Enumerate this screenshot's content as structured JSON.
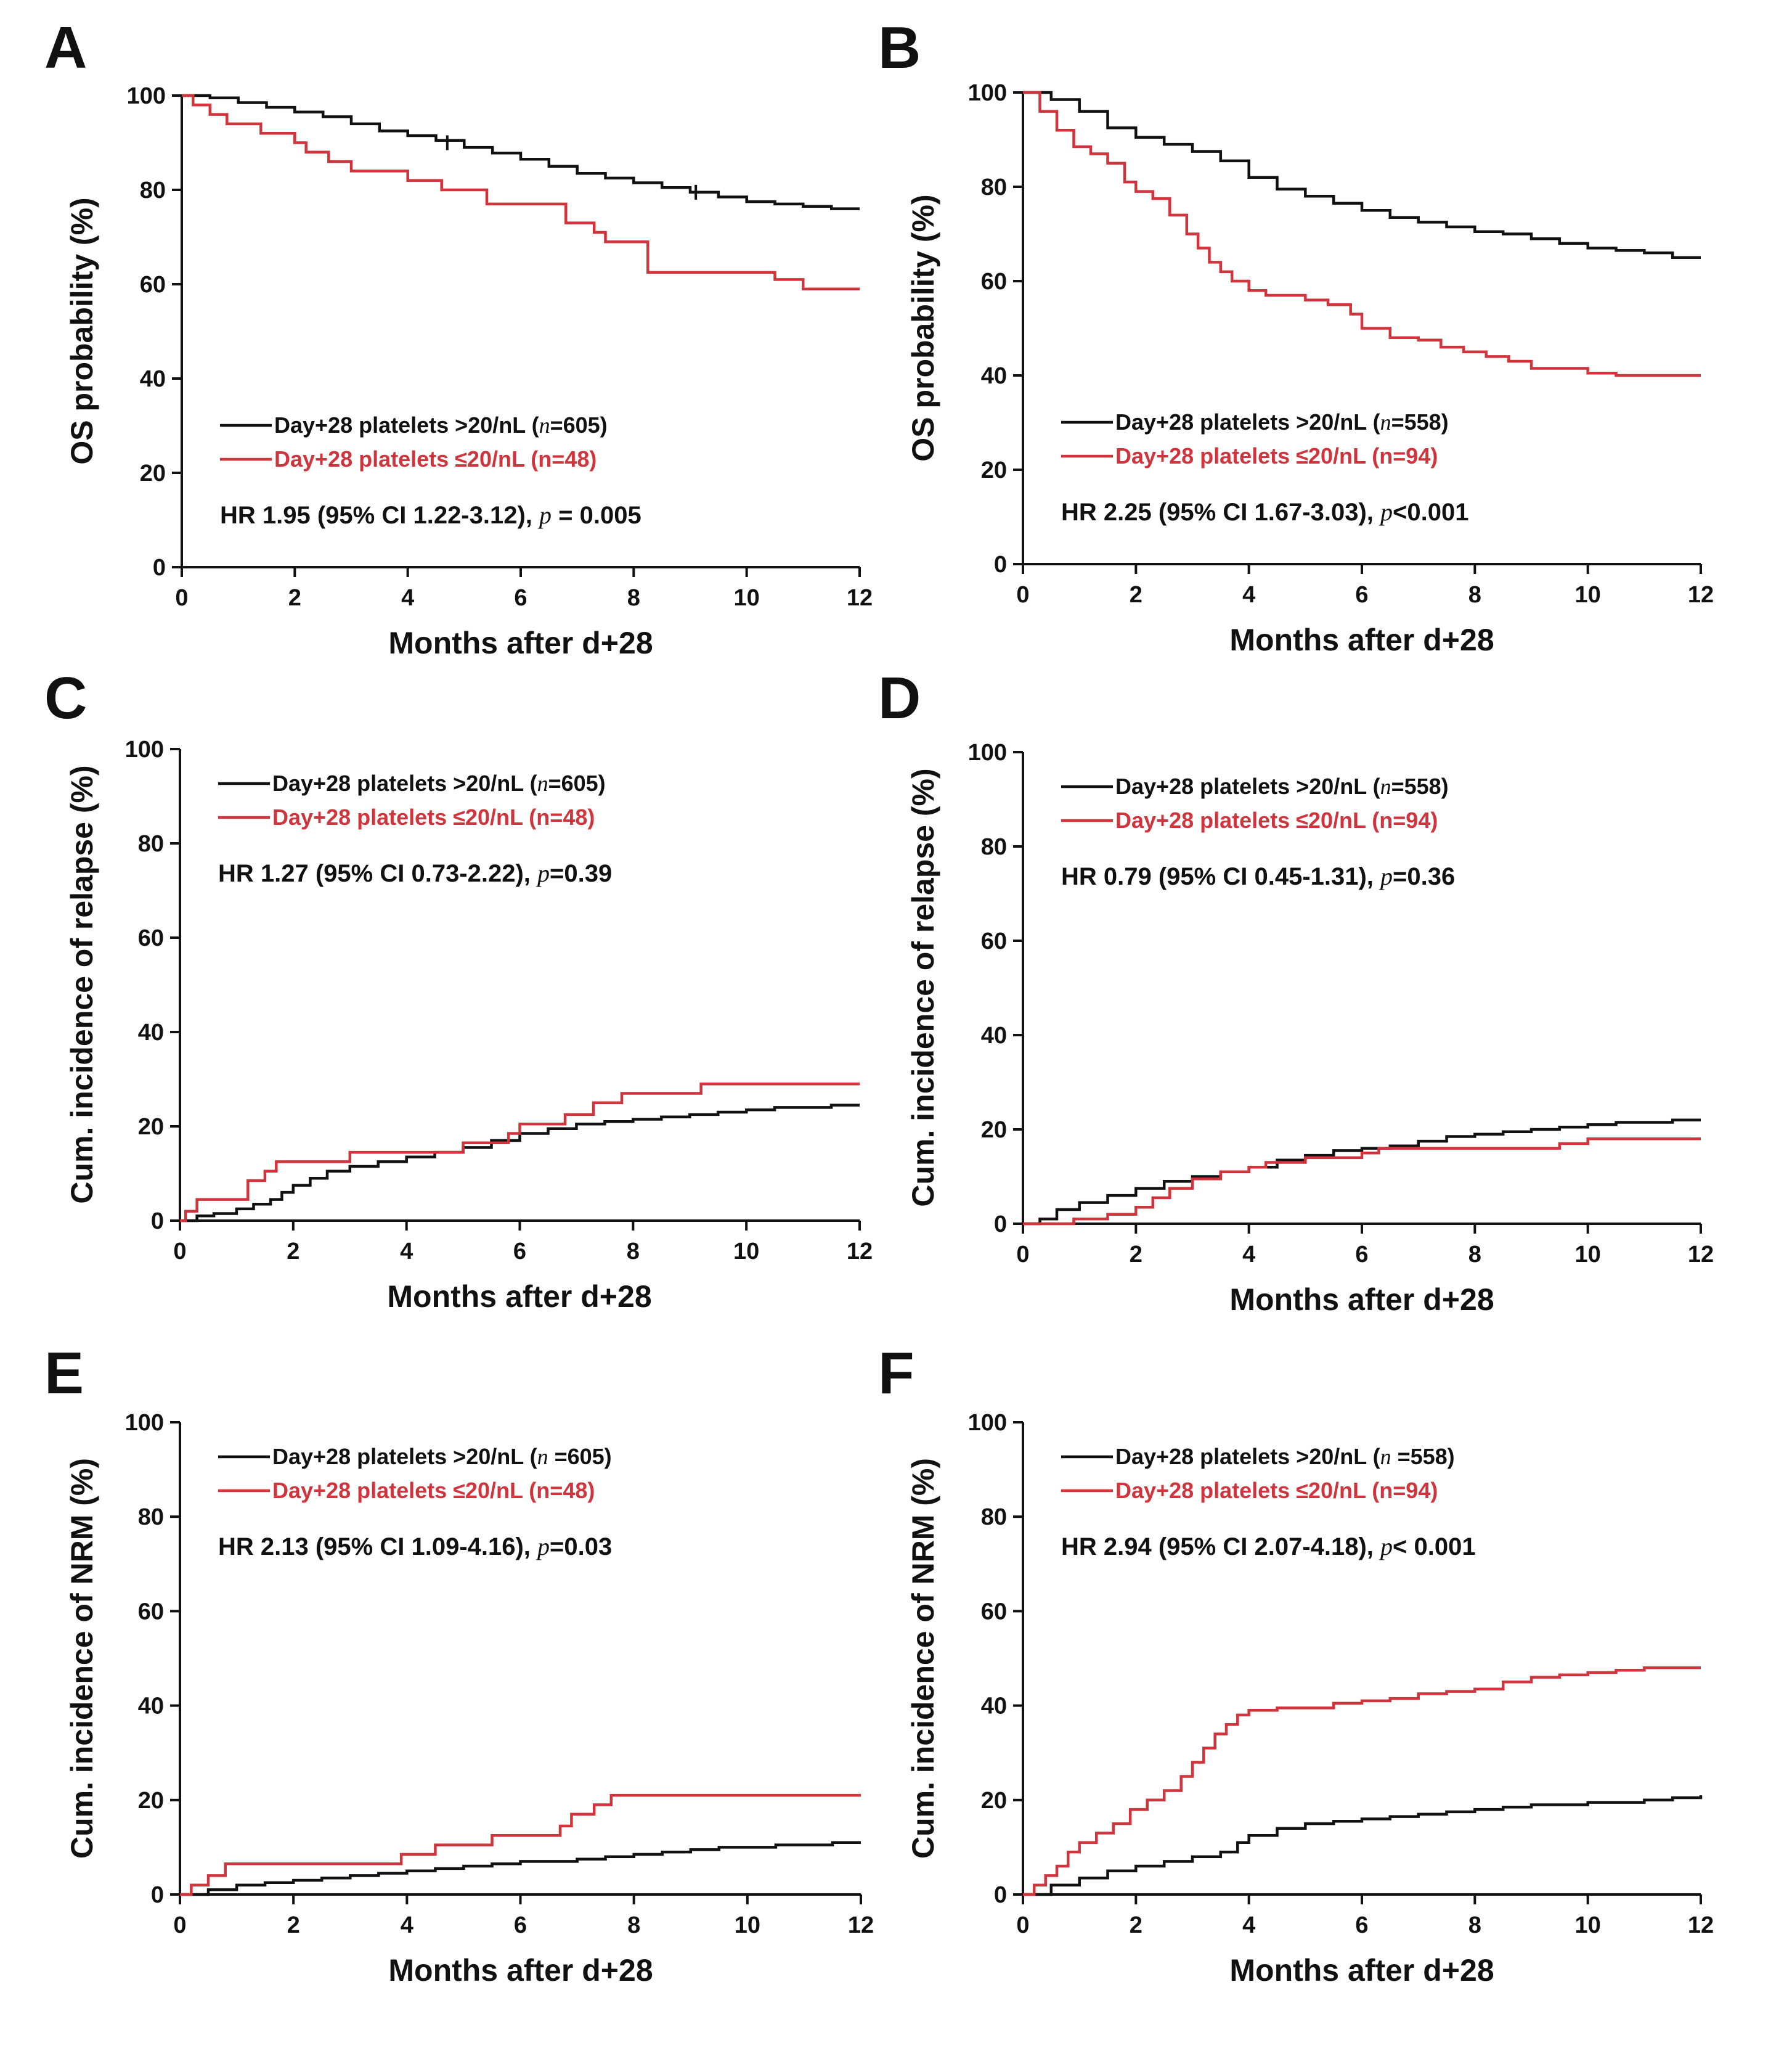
{
  "colors": {
    "series_high": "#111111",
    "series_low": "#d0343c",
    "axis": "#111111"
  },
  "chart_data": [
    {
      "panel": "A",
      "type": "line",
      "step": true,
      "ylabel": "OS probability (%)",
      "xlabel": "Months after d+28",
      "xlim": [
        0,
        12
      ],
      "ylim": [
        0,
        100
      ],
      "xticks": [
        0,
        2,
        4,
        6,
        8,
        10,
        12
      ],
      "yticks": [
        0,
        20,
        40,
        60,
        80,
        100
      ],
      "legend_position": "lower-left",
      "series": [
        {
          "name": "Day+28 platelets >20/nL",
          "n_prefix": "(",
          "n_symbol": "n",
          "n_suffix": "=605)",
          "color": "#111111",
          "x": [
            0,
            0.5,
            1,
            1.5,
            2,
            2.5,
            3,
            3.5,
            4,
            4.5,
            5,
            5.5,
            6,
            6.5,
            7,
            7.5,
            8,
            8.5,
            9,
            9.5,
            10,
            10.5,
            11,
            11.5,
            12
          ],
          "y": [
            100,
            99.5,
            98.5,
            97.5,
            96.5,
            95.5,
            94,
            92.5,
            91.5,
            90.5,
            89,
            87.8,
            86.5,
            85,
            83.5,
            82.5,
            81.5,
            80.5,
            79.5,
            78.5,
            77.5,
            77,
            76.5,
            76,
            76
          ]
        },
        {
          "name": "Day+28 platelets ≤20/nL",
          "n_prefix": "(",
          "n_symbol": "",
          "n_suffix": "n=48)",
          "color": "#d0343c",
          "x": [
            0,
            0.2,
            0.5,
            0.8,
            1.4,
            2,
            2.2,
            2.6,
            3,
            3.9,
            4,
            4.6,
            5,
            5.4,
            6,
            6.4,
            6.8,
            7,
            7.3,
            7.5,
            8,
            8.25,
            9,
            10,
            10.5,
            11,
            11.5,
            12
          ],
          "y": [
            100,
            98,
            96,
            94,
            92,
            90,
            88,
            86,
            84,
            84,
            82,
            80,
            80,
            77,
            77,
            77,
            73,
            73,
            71,
            69,
            69,
            62.5,
            62.5,
            62.5,
            61,
            59,
            59,
            59
          ]
        }
      ],
      "censor_marks": [
        {
          "x": 4.7,
          "y": 90
        },
        {
          "x": 9.1,
          "y": 79.5
        }
      ],
      "annotation": {
        "text": "HR 1.95 (95% CI 1.22-3.12), ",
        "p_symbol": "p",
        "p_text": " = 0.005"
      }
    },
    {
      "panel": "B",
      "type": "line",
      "step": true,
      "ylabel": "OS probability (%)",
      "xlabel": "Months after d+28",
      "xlim": [
        0,
        12
      ],
      "ylim": [
        0,
        100
      ],
      "xticks": [
        0,
        2,
        4,
        6,
        8,
        10,
        12
      ],
      "yticks": [
        0,
        20,
        40,
        60,
        80,
        100
      ],
      "legend_position": "lower-left",
      "series": [
        {
          "name": "Day+28 platelets >20/nL",
          "n_prefix": "(",
          "n_symbol": "n",
          "n_suffix": "=558)",
          "color": "#111111",
          "x": [
            0,
            0.5,
            1,
            1.5,
            2,
            2.5,
            3,
            3.5,
            4,
            4.5,
            5,
            5.5,
            6,
            6.5,
            7,
            7.5,
            8,
            8.5,
            9,
            9.5,
            10,
            10.5,
            11,
            11.5,
            12
          ],
          "y": [
            100,
            98.5,
            96,
            92.5,
            90.5,
            89,
            87.5,
            85.5,
            82,
            79.5,
            78,
            76.5,
            75,
            73.5,
            72.5,
            71.5,
            70.5,
            70,
            69,
            68,
            67,
            66.5,
            66,
            65,
            65
          ]
        },
        {
          "name": "Day+28 platelets ≤20/nL",
          "n_prefix": "(",
          "n_symbol": "",
          "n_suffix": "n=94)",
          "color": "#d0343c",
          "x": [
            0,
            0.3,
            0.6,
            0.9,
            1.2,
            1.5,
            1.8,
            2,
            2.3,
            2.6,
            2.9,
            3.1,
            3.3,
            3.5,
            3.7,
            4,
            4.3,
            4.7,
            5,
            5.4,
            5.8,
            6,
            6.5,
            7,
            7.4,
            7.8,
            8.2,
            8.6,
            9,
            9.5,
            10,
            10.5,
            11,
            11.5,
            12
          ],
          "y": [
            100,
            96,
            92,
            88.5,
            87,
            85,
            81,
            79,
            77.5,
            74,
            70,
            67,
            64,
            62,
            60,
            58,
            57,
            57,
            56,
            55,
            53,
            50,
            48,
            47.5,
            46,
            45,
            44,
            43,
            41.5,
            41.5,
            40.5,
            40,
            40,
            40,
            40
          ]
        }
      ],
      "censor_marks": [],
      "annotation": {
        "text": "HR 2.25 (95% CI 1.67-3.03), ",
        "p_symbol": "p",
        "p_text": "<0.001"
      }
    },
    {
      "panel": "C",
      "type": "line",
      "step": true,
      "ylabel": "Cum. incidence of relapse (%)",
      "xlabel": "Months after d+28",
      "xlim": [
        0,
        12
      ],
      "ylim": [
        0,
        100
      ],
      "xticks": [
        0,
        2,
        4,
        6,
        8,
        10,
        12
      ],
      "yticks": [
        0,
        20,
        40,
        60,
        80,
        100
      ],
      "legend_position": "upper-left",
      "series": [
        {
          "name": "Day+28 platelets >20/nL",
          "n_prefix": "(",
          "n_symbol": "n",
          "n_suffix": "=605)",
          "color": "#111111",
          "x": [
            0,
            0.3,
            0.6,
            1,
            1.3,
            1.6,
            1.8,
            2,
            2.3,
            2.6,
            3,
            3.5,
            4,
            4.5,
            5,
            5.5,
            6,
            6.5,
            7,
            7.5,
            8,
            8.5,
            9,
            9.5,
            10,
            10.5,
            11,
            11.5,
            12
          ],
          "y": [
            0,
            1,
            1.5,
            2.5,
            3.5,
            4.5,
            6,
            7.5,
            9,
            10.5,
            11.5,
            12.5,
            13.5,
            14.5,
            15.5,
            17,
            18.5,
            19.5,
            20.5,
            21,
            21.5,
            22,
            22.5,
            23,
            23.5,
            24,
            24,
            24.5,
            24.5
          ]
        },
        {
          "name": "Day+28 platelets ≤20/nL",
          "n_prefix": "(",
          "n_symbol": "",
          "n_suffix": "n=48)",
          "color": "#d0343c",
          "x": [
            0,
            0.1,
            0.3,
            0.9,
            1.2,
            1.5,
            1.7,
            2.7,
            3,
            4.6,
            5,
            5.8,
            6,
            6.4,
            6.8,
            7.3,
            7.8,
            8.2,
            8.6,
            9.2,
            10,
            12
          ],
          "y": [
            0,
            2,
            4.5,
            4.5,
            8.5,
            10.5,
            12.5,
            12.5,
            14.5,
            14.5,
            16.5,
            18.5,
            20.5,
            20.5,
            22.5,
            25,
            27,
            27,
            27,
            29,
            29,
            29
          ]
        }
      ],
      "censor_marks": [],
      "annotation": {
        "text": "HR 1.27 (95% CI 0.73-2.22), ",
        "p_symbol": "p",
        "p_text": "=0.39"
      }
    },
    {
      "panel": "D",
      "type": "line",
      "step": true,
      "ylabel": "Cum. incidence of relapse (%)",
      "xlabel": "Months after d+28",
      "xlim": [
        0,
        12
      ],
      "ylim": [
        0,
        100
      ],
      "xticks": [
        0,
        2,
        4,
        6,
        8,
        10,
        12
      ],
      "yticks": [
        0,
        20,
        40,
        60,
        80,
        100
      ],
      "legend_position": "upper-left",
      "series": [
        {
          "name": "Day+28 platelets >20/nL",
          "n_prefix": "(",
          "n_symbol": "n",
          "n_suffix": "=558)",
          "color": "#111111",
          "x": [
            0,
            0.3,
            0.6,
            1,
            1.5,
            2,
            2.5,
            3,
            3.5,
            4,
            4.5,
            5,
            5.5,
            6,
            6.5,
            7,
            7.5,
            8,
            8.5,
            9,
            9.5,
            10,
            10.5,
            11,
            11.5,
            12
          ],
          "y": [
            0,
            1,
            3,
            4.5,
            6,
            7.5,
            9,
            10,
            11,
            12,
            13.5,
            14.5,
            15.5,
            16,
            16.5,
            17.5,
            18.5,
            19,
            19.5,
            20,
            20.5,
            21,
            21.5,
            21.5,
            22,
            22
          ]
        },
        {
          "name": "Day+28 platelets ≤20/nL",
          "n_prefix": "(",
          "n_symbol": "",
          "n_suffix": "n=94)",
          "color": "#d0343c",
          "x": [
            0,
            0.8,
            0.9,
            1.5,
            2,
            2.3,
            2.6,
            3,
            3.5,
            4,
            4.3,
            5,
            5.5,
            6,
            6.3,
            7,
            8,
            9,
            9.5,
            10,
            11,
            12
          ],
          "y": [
            0,
            0,
            1,
            2,
            3.5,
            5.5,
            7.5,
            9.5,
            11,
            12,
            13,
            14,
            14,
            15,
            16,
            16,
            16,
            16,
            17,
            18,
            18,
            18
          ]
        }
      ],
      "censor_marks": [],
      "annotation": {
        "text": "HR 0.79 (95% CI 0.45-1.31), ",
        "p_symbol": "p",
        "p_text": "=0.36"
      }
    },
    {
      "panel": "E",
      "type": "line",
      "step": true,
      "ylabel": "Cum. incidence of NRM (%)",
      "xlabel": "Months after d+28",
      "xlim": [
        0,
        12
      ],
      "ylim": [
        0,
        100
      ],
      "xticks": [
        0,
        2,
        4,
        6,
        8,
        10,
        12
      ],
      "yticks": [
        0,
        20,
        40,
        60,
        80,
        100
      ],
      "legend_position": "upper-left",
      "series": [
        {
          "name": "Day+28 platelets >20/nL",
          "n_prefix": "(",
          "n_symbol": "n",
          "n_suffix": " =605)",
          "color": "#111111",
          "x": [
            0,
            0.5,
            1,
            1.5,
            2,
            2.5,
            3,
            3.5,
            4,
            4.5,
            5,
            5.5,
            6,
            6.5,
            7,
            7.5,
            8,
            8.5,
            9,
            9.5,
            10,
            10.5,
            11,
            11.5,
            12
          ],
          "y": [
            0,
            1,
            2,
            2.5,
            3,
            3.5,
            4,
            4.5,
            5,
            5.5,
            6,
            6.5,
            7,
            7,
            7.5,
            8,
            8.5,
            9,
            9.5,
            10,
            10,
            10.5,
            10.5,
            11,
            11
          ]
        },
        {
          "name": "Day+28 platelets ≤20/nL",
          "n_prefix": "(",
          "n_symbol": "",
          "n_suffix": "n=48)",
          "color": "#d0343c",
          "x": [
            0,
            0.2,
            0.5,
            0.8,
            2,
            3.5,
            3.9,
            4.5,
            5,
            5.5,
            6,
            6.7,
            6.9,
            7.3,
            7.6,
            8,
            9,
            10,
            12
          ],
          "y": [
            0,
            2,
            4,
            6.5,
            6.5,
            6.5,
            8.5,
            10.5,
            10.5,
            12.5,
            12.5,
            14.5,
            17,
            19,
            21,
            21,
            21,
            21,
            21
          ]
        }
      ],
      "censor_marks": [],
      "annotation": {
        "text": "HR 2.13 (95% CI 1.09-4.16), ",
        "p_symbol": "p",
        "p_text": "=0.03"
      }
    },
    {
      "panel": "F",
      "type": "line",
      "step": true,
      "ylabel": "Cum. incidence of NRM (%)",
      "xlabel": "Months after d+28",
      "xlim": [
        0,
        12
      ],
      "ylim": [
        0,
        100
      ],
      "xticks": [
        0,
        2,
        4,
        6,
        8,
        10,
        12
      ],
      "yticks": [
        0,
        20,
        40,
        60,
        80,
        100
      ],
      "legend_position": "upper-left",
      "series": [
        {
          "name": "Day+28 platelets >20/nL",
          "n_prefix": "(",
          "n_symbol": "n",
          "n_suffix": " =558)",
          "color": "#111111",
          "x": [
            0,
            0.5,
            1,
            1.5,
            2,
            2.5,
            3,
            3.5,
            3.8,
            4,
            4.5,
            5,
            5.5,
            6,
            6.5,
            7,
            7.5,
            8,
            8.5,
            9,
            9.5,
            10,
            10.5,
            11,
            11.5,
            12
          ],
          "y": [
            0,
            2,
            3.5,
            5,
            6,
            7,
            8,
            9,
            11,
            12.5,
            14,
            15,
            15.5,
            16,
            16.5,
            17,
            17.5,
            18,
            18.5,
            19,
            19,
            19.5,
            19.5,
            20,
            20.5,
            21
          ]
        },
        {
          "name": "Day+28 platelets ≤20/nL",
          "n_prefix": "(",
          "n_symbol": "",
          "n_suffix": "n=94)",
          "color": "#d0343c",
          "x": [
            0,
            0.2,
            0.4,
            0.6,
            0.8,
            1,
            1.3,
            1.6,
            1.9,
            2.2,
            2.5,
            2.8,
            3,
            3.2,
            3.4,
            3.6,
            3.8,
            4,
            4.5,
            5,
            5.5,
            6,
            6.5,
            7,
            7.5,
            8,
            8.5,
            9,
            9.5,
            10,
            10.5,
            11,
            12
          ],
          "y": [
            0,
            2,
            4,
            6,
            9,
            11,
            13,
            15,
            18,
            20,
            22,
            25,
            28,
            31,
            34,
            36,
            38,
            39,
            39.5,
            39.5,
            40.5,
            41,
            41.5,
            42.5,
            43,
            43.5,
            45,
            46,
            46.5,
            47,
            47.5,
            48,
            48
          ]
        }
      ],
      "censor_marks": [],
      "annotation": {
        "text": "HR 2.94 (95% CI 2.07-4.18), ",
        "p_symbol": "p",
        "p_text": "< 0.001"
      }
    }
  ]
}
